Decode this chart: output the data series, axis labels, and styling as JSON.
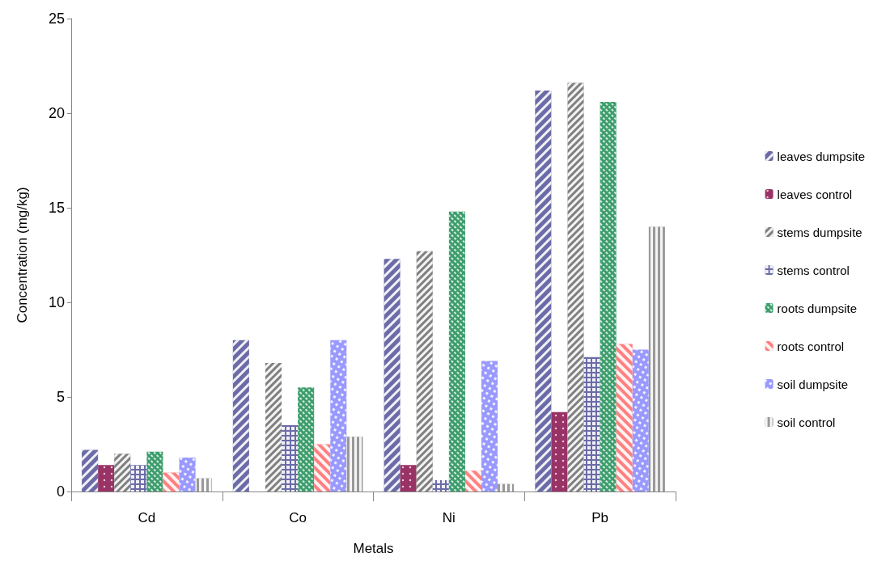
{
  "chart_data": {
    "type": "bar",
    "xlabel": "Metals",
    "ylabel": "Concentration (mg/kg)",
    "categories": [
      "Cd",
      "Co",
      "Ni",
      "Pb"
    ],
    "series": [
      {
        "name": "leaves dumpsite",
        "color": "#6b6ba8",
        "values": [
          2.2,
          8.0,
          12.3,
          21.2
        ]
      },
      {
        "name": "leaves control",
        "color": "#993366",
        "values": [
          1.4,
          0,
          1.4,
          4.2
        ]
      },
      {
        "name": "stems dumpsite",
        "color": "#808080",
        "values": [
          2.0,
          6.8,
          12.7,
          21.6
        ]
      },
      {
        "name": "stems control",
        "color": "#6b6ba8",
        "values": [
          1.4,
          3.5,
          0.6,
          7.1
        ]
      },
      {
        "name": "roots dumpsite",
        "color": "#3c9d6c",
        "values": [
          2.1,
          5.5,
          14.8,
          20.6
        ]
      },
      {
        "name": "roots control",
        "color": "#ff8080",
        "values": [
          1.0,
          2.5,
          1.1,
          7.8
        ]
      },
      {
        "name": "soil dumpsite",
        "color": "#9999ff",
        "values": [
          1.8,
          8.0,
          6.9,
          7.5
        ]
      },
      {
        "name": "soil control",
        "color": "#999999",
        "values": [
          0.7,
          2.9,
          0.4,
          14.0
        ]
      }
    ],
    "ylim": [
      0,
      25
    ],
    "yticks": [
      0,
      5,
      10,
      15,
      20,
      25
    ],
    "grid": false,
    "legend": "right"
  }
}
